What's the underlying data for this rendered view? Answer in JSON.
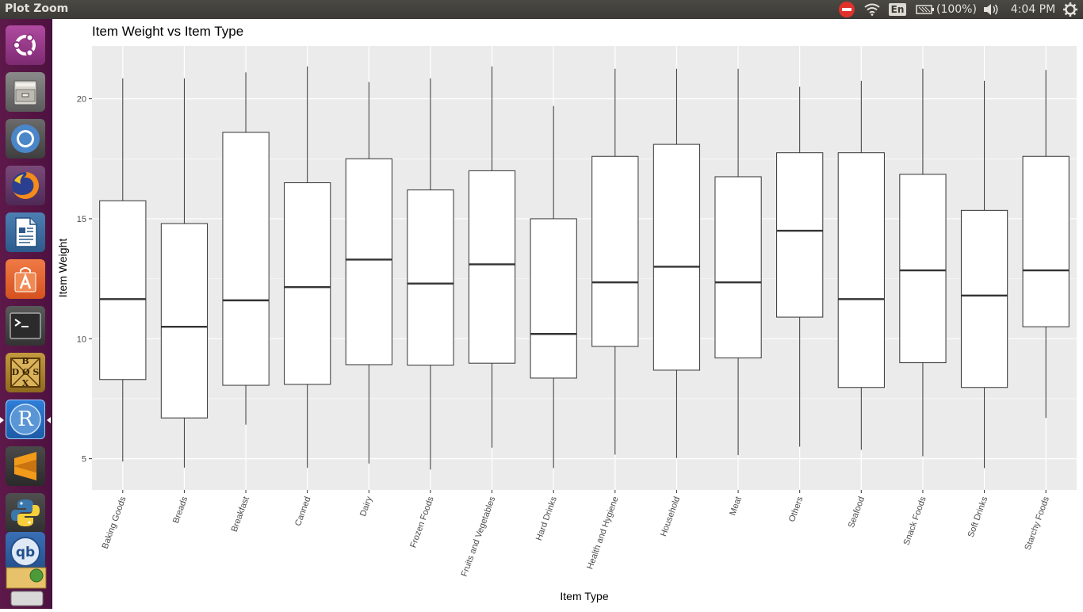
{
  "window": {
    "title": "Plot Zoom"
  },
  "topbar": {
    "lang": "En",
    "battery": "(100%)",
    "clock": "4:04 PM"
  },
  "launcher": {
    "r_label": "R",
    "dosbox_label": [
      "B",
      "D O S",
      "X"
    ]
  },
  "colors": {
    "panel_bg": "#ebebeb",
    "grid": "#ffffff",
    "box_fill": "#ffffff",
    "box_line": "#333333",
    "launcher_bg": "#5d1949"
  },
  "chart_data": {
    "type": "boxplot",
    "title": "Item Weight vs Item Type",
    "xlabel": "Item Type",
    "ylabel": "Item Weight",
    "ylim": [
      3.7,
      22.2
    ],
    "yticks": [
      5,
      10,
      15,
      20
    ],
    "categories": [
      "Baking Goods",
      "Breads",
      "Breakfast",
      "Canned",
      "Dairy",
      "Frozen Foods",
      "Fruits and Vegetables",
      "Hard Drinks",
      "Health and Hygiene",
      "Household",
      "Meat",
      "Others",
      "Seafood",
      "Snack Foods",
      "Soft Drinks",
      "Starchy Foods"
    ],
    "boxes": [
      {
        "min": 4.88,
        "q1": 8.3,
        "median": 11.65,
        "q3": 15.75,
        "max": 20.85
      },
      {
        "min": 4.63,
        "q1": 6.7,
        "median": 10.5,
        "q3": 14.8,
        "max": 20.85
      },
      {
        "min": 6.42,
        "q1": 8.06,
        "median": 11.6,
        "q3": 18.6,
        "max": 21.1
      },
      {
        "min": 4.62,
        "q1": 8.1,
        "median": 12.15,
        "q3": 16.5,
        "max": 21.35
      },
      {
        "min": 4.8,
        "q1": 8.92,
        "median": 13.3,
        "q3": 17.5,
        "max": 20.7
      },
      {
        "min": 4.55,
        "q1": 8.9,
        "median": 12.3,
        "q3": 16.2,
        "max": 20.85
      },
      {
        "min": 5.46,
        "q1": 8.98,
        "median": 13.1,
        "q3": 17.0,
        "max": 21.35
      },
      {
        "min": 4.61,
        "q1": 8.36,
        "median": 10.2,
        "q3": 15.0,
        "max": 19.7
      },
      {
        "min": 5.17,
        "q1": 9.68,
        "median": 12.35,
        "q3": 17.6,
        "max": 21.25
      },
      {
        "min": 5.03,
        "q1": 8.69,
        "median": 13.0,
        "q3": 18.1,
        "max": 21.25
      },
      {
        "min": 5.15,
        "q1": 9.2,
        "median": 12.35,
        "q3": 16.75,
        "max": 21.25
      },
      {
        "min": 5.5,
        "q1": 10.9,
        "median": 14.5,
        "q3": 17.75,
        "max": 20.5
      },
      {
        "min": 5.37,
        "q1": 7.97,
        "median": 11.65,
        "q3": 17.75,
        "max": 20.75
      },
      {
        "min": 5.1,
        "q1": 9.0,
        "median": 12.85,
        "q3": 16.85,
        "max": 21.25
      },
      {
        "min": 4.61,
        "q1": 7.97,
        "median": 11.8,
        "q3": 15.35,
        "max": 20.75
      },
      {
        "min": 6.7,
        "q1": 10.5,
        "median": 12.85,
        "q3": 17.6,
        "max": 21.2
      }
    ]
  }
}
